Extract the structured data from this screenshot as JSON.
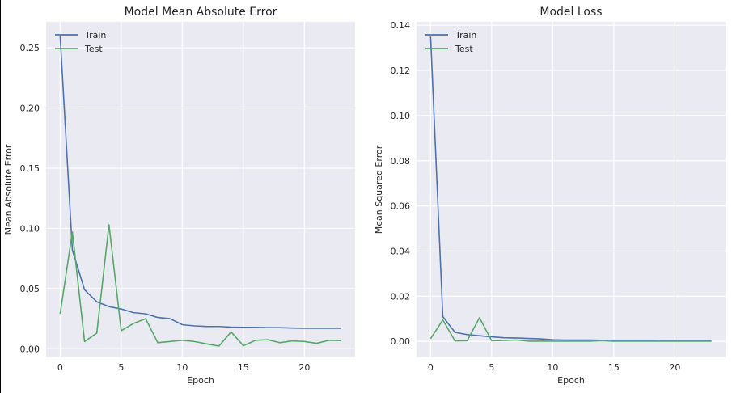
{
  "chart_data": [
    {
      "type": "line",
      "title": "Model Mean Absolute Error",
      "xlabel": "Epoch",
      "ylabel": "Mean Absolute Error",
      "xlim": [
        -1.15,
        24.15
      ],
      "ylim": [
        -0.0072,
        0.2716
      ],
      "xticks": [
        0,
        5,
        10,
        15,
        20
      ],
      "xtick_labels": [
        "0",
        "5",
        "10",
        "15",
        "20"
      ],
      "yticks": [
        0.0,
        0.05,
        0.1,
        0.15,
        0.2,
        0.25
      ],
      "ytick_labels": [
        "0.00",
        "0.05",
        "0.10",
        "0.15",
        "0.20",
        "0.25"
      ],
      "grid": true,
      "legend": "top-left",
      "x": [
        0,
        1,
        2,
        3,
        4,
        5,
        6,
        7,
        8,
        9,
        10,
        11,
        12,
        13,
        14,
        15,
        16,
        17,
        18,
        19,
        20,
        21,
        22,
        23
      ],
      "series": [
        {
          "name": "Train",
          "color": "#4c72b0",
          "values": [
            0.26,
            0.082,
            0.049,
            0.039,
            0.035,
            0.033,
            0.03,
            0.029,
            0.026,
            0.025,
            0.02,
            0.019,
            0.0185,
            0.0185,
            0.018,
            0.0178,
            0.0178,
            0.0175,
            0.0175,
            0.0172,
            0.017,
            0.017,
            0.017,
            0.017
          ]
        },
        {
          "name": "Test",
          "color": "#55a868",
          "values": [
            0.029,
            0.097,
            0.006,
            0.013,
            0.103,
            0.015,
            0.021,
            0.025,
            0.005,
            0.006,
            0.007,
            0.006,
            0.004,
            0.0022,
            0.014,
            0.0025,
            0.007,
            0.0075,
            0.005,
            0.0065,
            0.006,
            0.0045,
            0.007,
            0.0068
          ]
        }
      ]
    },
    {
      "type": "line",
      "title": "Model Loss",
      "xlabel": "Epoch",
      "ylabel": "Mean Squared Error",
      "xlim": [
        -1.15,
        24.15
      ],
      "ylim": [
        -0.0071,
        0.1415
      ],
      "xticks": [
        0,
        5,
        10,
        15,
        20
      ],
      "xtick_labels": [
        "0",
        "5",
        "10",
        "15",
        "20"
      ],
      "yticks": [
        0.0,
        0.02,
        0.04,
        0.06,
        0.08,
        0.1,
        0.12,
        0.14
      ],
      "ytick_labels": [
        "0.00",
        "0.02",
        "0.04",
        "0.06",
        "0.08",
        "0.10",
        "0.12",
        "0.14"
      ],
      "grid": true,
      "legend": "top-left",
      "x": [
        0,
        1,
        2,
        3,
        4,
        5,
        6,
        7,
        8,
        9,
        10,
        11,
        12,
        13,
        14,
        15,
        16,
        17,
        18,
        19,
        20,
        21,
        22,
        23
      ],
      "series": [
        {
          "name": "Train",
          "color": "#4c72b0",
          "values": [
            0.135,
            0.011,
            0.004,
            0.003,
            0.0025,
            0.002,
            0.0016,
            0.0015,
            0.0013,
            0.0011,
            0.0007,
            0.0006,
            0.0006,
            0.0006,
            0.0005,
            0.0005,
            0.0005,
            0.0005,
            0.0005,
            0.0004,
            0.0004,
            0.0004,
            0.0004,
            0.0004
          ]
        },
        {
          "name": "Test",
          "color": "#55a868",
          "values": [
            0.0012,
            0.0095,
            0.0002,
            0.0003,
            0.0105,
            0.0003,
            0.0004,
            0.0006,
            0.0001,
            0.0001,
            0.0001,
            0.0001,
            0.0001,
            0.0001,
            0.0003,
            0.0001,
            0.0001,
            0.0001,
            0.0001,
            0.0001,
            0.0001,
            0.0001,
            0.0001,
            0.0001
          ]
        }
      ]
    }
  ]
}
